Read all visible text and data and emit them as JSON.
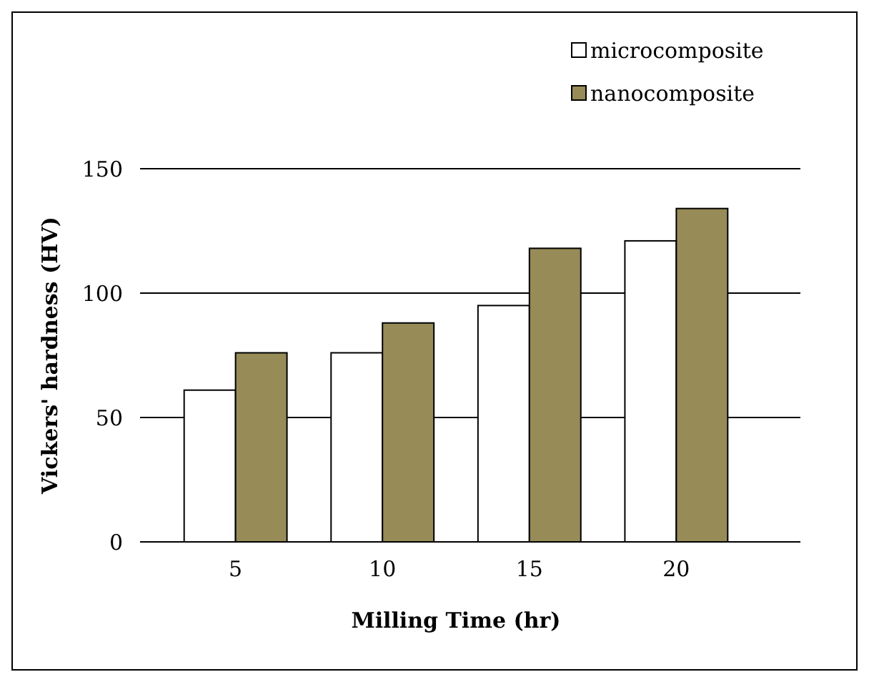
{
  "chart_data": {
    "type": "bar",
    "xlabel": "Milling Time (hr)",
    "ylabel": "Vickers' hardness (HV)",
    "categories": [
      "5",
      "10",
      "15",
      "20"
    ],
    "series": [
      {
        "name": "microcomposite",
        "color": "#ffffff",
        "values": [
          61,
          76,
          95,
          121
        ]
      },
      {
        "name": "nanocomposite",
        "color": "#978b57",
        "values": [
          76,
          88,
          118,
          134
        ]
      }
    ],
    "ylim": [
      0,
      150
    ],
    "yticks": [
      0,
      50,
      100,
      150
    ],
    "grid": "y",
    "legend": "top right"
  }
}
